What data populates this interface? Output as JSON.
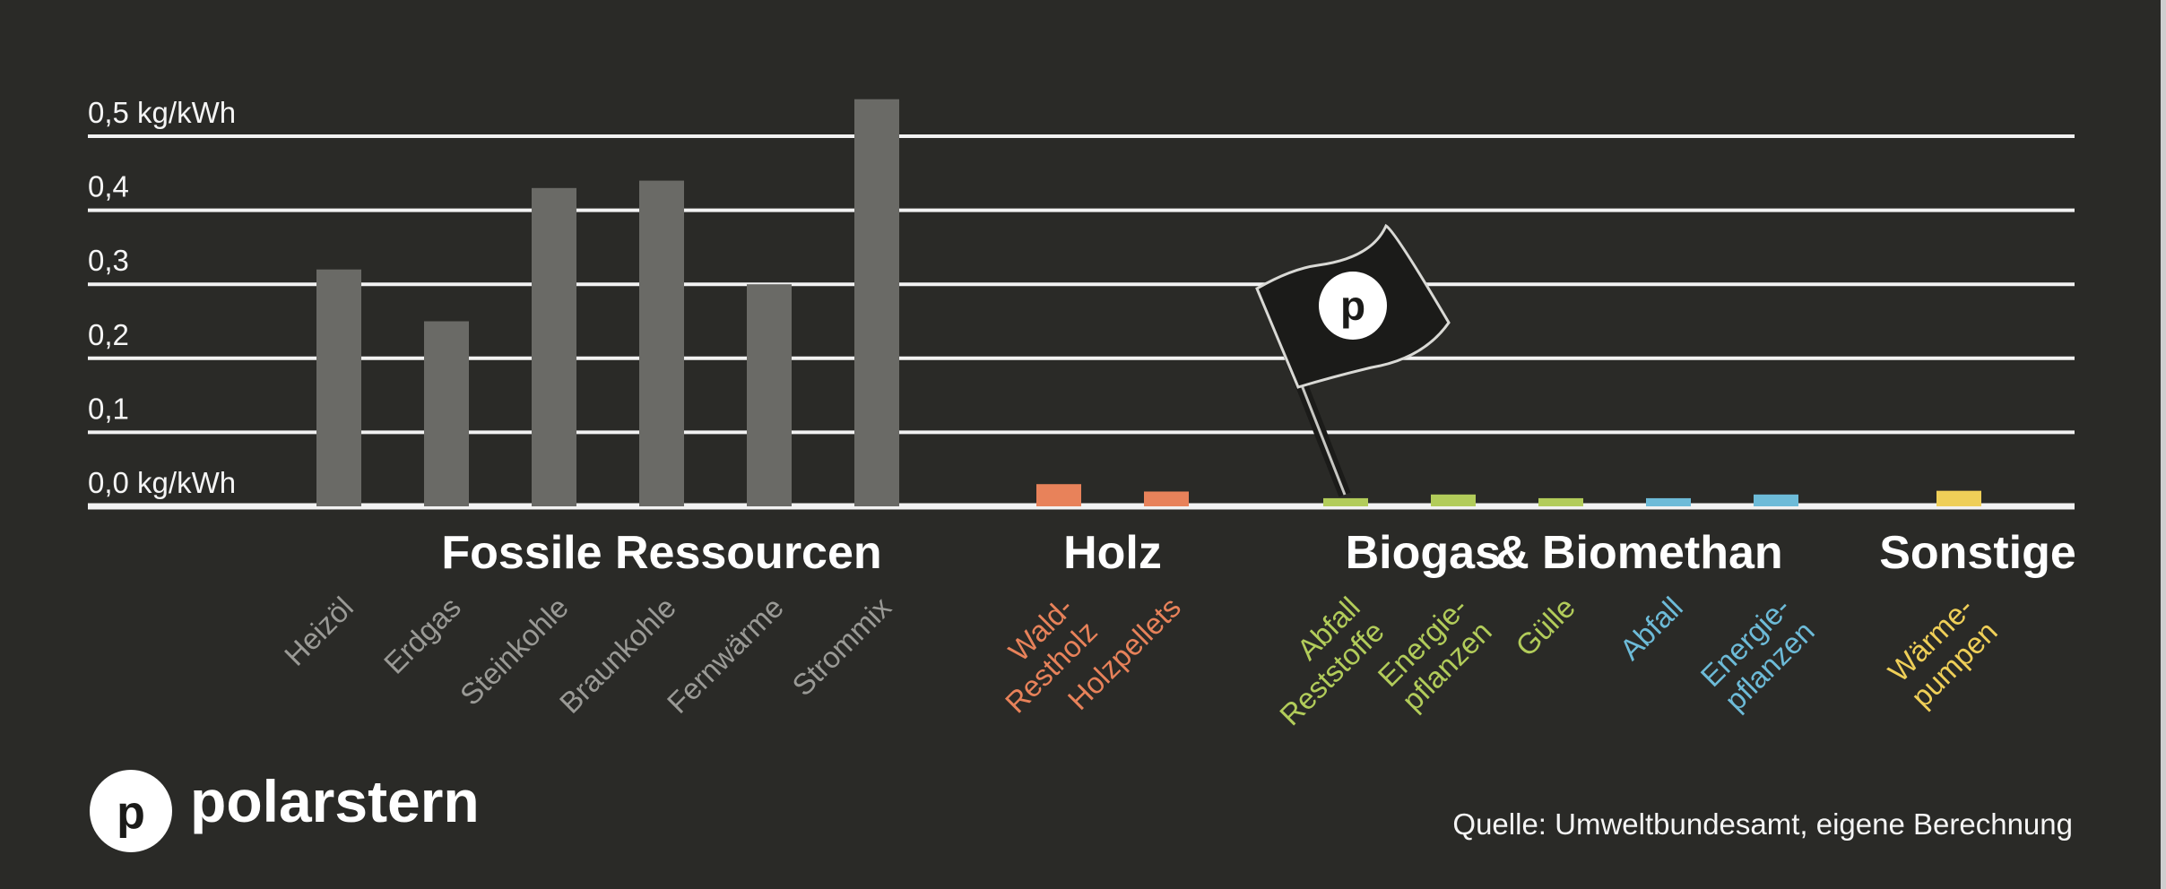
{
  "chart_data": {
    "type": "bar",
    "title": "",
    "xlabel": "",
    "ylabel": "",
    "ylim": [
      0,
      0.5
    ],
    "y_ticks": [
      {
        "value": 0.0,
        "label": "0,0 kg/kWh"
      },
      {
        "value": 0.1,
        "label": "0,1"
      },
      {
        "value": 0.2,
        "label": "0,2"
      },
      {
        "value": 0.3,
        "label": "0,3"
      },
      {
        "value": 0.4,
        "label": "0,4"
      },
      {
        "value": 0.5,
        "label": "0,5 kg/kWh"
      }
    ],
    "grid": true,
    "groups": [
      {
        "name": "Fossile Ressourcen",
        "color": "#6a6a66",
        "label_color": "#9a9a96",
        "categories": [
          {
            "label": "Heizöl",
            "value": 0.32
          },
          {
            "label": "Erdgas",
            "value": 0.25
          },
          {
            "label": "Steinkohle",
            "value": 0.43
          },
          {
            "label": "Braunkohle",
            "value": 0.44
          },
          {
            "label": "Fernwärme",
            "value": 0.3
          },
          {
            "label": "Strommix",
            "value": 0.55
          }
        ]
      },
      {
        "name": "Holz",
        "color": "#e8825a",
        "label_color": "#e8825a",
        "categories": [
          {
            "label": "Wald-\nRestholz",
            "value": 0.03
          },
          {
            "label": "Holzpellets",
            "value": 0.02
          }
        ]
      },
      {
        "name": "Biogas",
        "color": "#b2cc5a",
        "label_color": "#b2cc5a",
        "categories": [
          {
            "label": "Abfall\nReststoffe",
            "value": 0.011
          },
          {
            "label": "Energie-\npflanzen",
            "value": 0.016
          },
          {
            "label": "Gülle",
            "value": 0.011
          }
        ]
      },
      {
        "name": "Biomethan",
        "color": "#6dbbd8",
        "label_color": "#6dbbd8",
        "categories": [
          {
            "label": "Abfall",
            "value": 0.011
          },
          {
            "label": "Energie-\npflanzen",
            "value": 0.016
          }
        ]
      },
      {
        "name": "Sonstige",
        "color": "#efcf58",
        "label_color": "#efcf58",
        "categories": [
          {
            "label": "Wärme-\npumpen",
            "value": 0.021
          }
        ]
      }
    ],
    "group_headings": [
      "Fossile Ressourcen",
      "Holz",
      "Biogas",
      "&",
      "Biomethan",
      "Sonstige"
    ]
  },
  "flag_logo_letter": "p",
  "brand": {
    "logo_letter": "p",
    "name": "polarstern"
  },
  "source": "Quelle: Umweltbundesamt, eigene Berechnung",
  "colors": {
    "background": "#2a2a27",
    "grid": "#f2f2f2",
    "text": "#f5f5f5"
  }
}
